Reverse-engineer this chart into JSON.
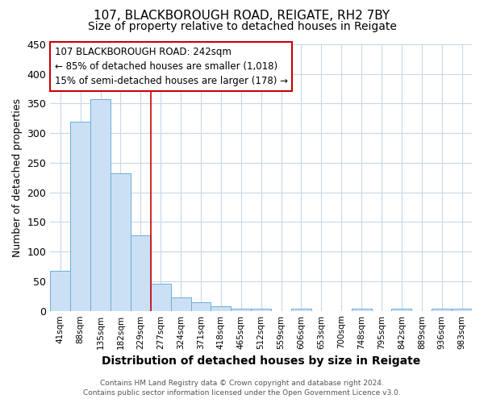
{
  "title": "107, BLACKBOROUGH ROAD, REIGATE, RH2 7BY",
  "subtitle": "Size of property relative to detached houses in Reigate",
  "xlabel": "Distribution of detached houses by size in Reigate",
  "ylabel": "Number of detached properties",
  "footer_line1": "Contains HM Land Registry data © Crown copyright and database right 2024.",
  "footer_line2": "Contains public sector information licensed under the Open Government Licence v3.0.",
  "bin_labels": [
    "41sqm",
    "88sqm",
    "135sqm",
    "182sqm",
    "229sqm",
    "277sqm",
    "324sqm",
    "371sqm",
    "418sqm",
    "465sqm",
    "512sqm",
    "559sqm",
    "606sqm",
    "653sqm",
    "700sqm",
    "748sqm",
    "795sqm",
    "842sqm",
    "889sqm",
    "936sqm",
    "983sqm"
  ],
  "bar_values": [
    67,
    320,
    358,
    232,
    128,
    46,
    23,
    15,
    8,
    3,
    4,
    0,
    4,
    0,
    0,
    4,
    0,
    4,
    0,
    4,
    4
  ],
  "bar_color": "#cce0f5",
  "bar_edge_color": "#6aaed6",
  "vline_x": 4.5,
  "vline_color": "#cc0000",
  "annotation_text": "107 BLACKBOROUGH ROAD: 242sqm\n← 85% of detached houses are smaller (1,018)\n15% of semi-detached houses are larger (178) →",
  "annotation_box_color": "#ffffff",
  "annotation_box_edge": "#cc0000",
  "ylim": [
    0,
    450
  ],
  "background_color": "#ffffff",
  "plot_bg_color": "#ffffff",
  "grid_color": "#c8d8ea"
}
